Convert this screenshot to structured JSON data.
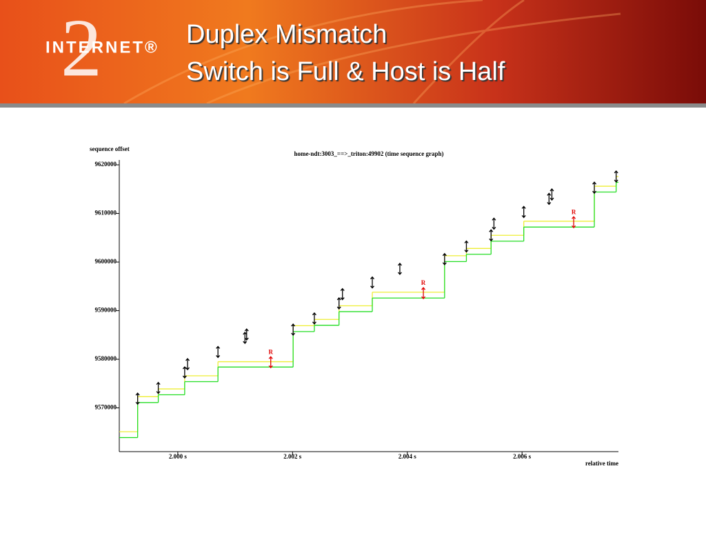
{
  "header": {
    "logo_mark": "2",
    "logo_text": "INTERNET®",
    "title_lines": [
      "Duplex Mismatch",
      "Switch is Full & Host is Half"
    ]
  },
  "chart_data": {
    "type": "time-sequence",
    "title": "home-ndt:3003_==>_triton:49902 (time sequence graph)",
    "y_label": "sequence offset",
    "x_label": "relative time",
    "xlim": [
      1.99898,
      2.00768
    ],
    "ylim": [
      9561000,
      9621000
    ],
    "xticks": [
      {
        "value": 2.0,
        "label": "2.000 s"
      },
      {
        "value": 2.002,
        "label": "2.002 s"
      },
      {
        "value": 2.004,
        "label": "2.004 s"
      },
      {
        "value": 2.006,
        "label": "2.006 s"
      }
    ],
    "yticks": [
      9570000,
      9580000,
      9590000,
      9600000,
      9610000,
      9620000
    ],
    "segments": {
      "color": "#000000",
      "x": [
        1.9993,
        1.99966,
        2.00012,
        2.00017,
        2.0007,
        2.00117,
        2.0012,
        2.00201,
        2.00238,
        2.00281,
        2.00287,
        2.00339,
        2.00387,
        2.00465,
        2.00503,
        2.00546,
        2.00551,
        2.00603,
        2.00647,
        2.00652,
        2.00726,
        2.00764
      ],
      "y": [
        9571900,
        9574100,
        9577300,
        9579000,
        9581500,
        9584400,
        9585100,
        9586100,
        9588400,
        9591500,
        9593400,
        9595800,
        9598600,
        9600600,
        9603200,
        9605500,
        9607900,
        9610300,
        9613000,
        9613900,
        9615300,
        9617600
      ]
    },
    "retransmissions": {
      "label": "R",
      "color": "#e00000",
      "x": [
        2.00162,
        2.00428,
        2.0069
      ],
      "y": [
        9579400,
        9593600,
        9608200
      ]
    },
    "ack": {
      "color": "#22dd22",
      "x": [
        1.99898,
        1.9993,
        1.99966,
        2.00012,
        2.0007,
        2.00201,
        2.00238,
        2.00281,
        2.00339,
        2.00465,
        2.00503,
        2.00546,
        2.00603,
        2.00726,
        2.00764
      ],
      "y": [
        9563900,
        9571100,
        9572700,
        9575400,
        9578400,
        9585700,
        9587000,
        9589800,
        9592600,
        9600100,
        9601600,
        9604300,
        9607200,
        9614400,
        9616400
      ]
    },
    "window": {
      "color": "#eeee33",
      "x": [
        1.99898,
        1.9993,
        1.99966,
        2.00012,
        2.0007,
        2.00201,
        2.00238,
        2.00281,
        2.00339,
        2.00465,
        2.00503,
        2.00546,
        2.00603,
        2.00726,
        2.00764
      ],
      "y": [
        9565100,
        9572300,
        9573900,
        9576600,
        9579500,
        9586900,
        9588200,
        9591000,
        9593800,
        9601300,
        9602800,
        9605500,
        9608400,
        9615600,
        9617600
      ]
    }
  }
}
